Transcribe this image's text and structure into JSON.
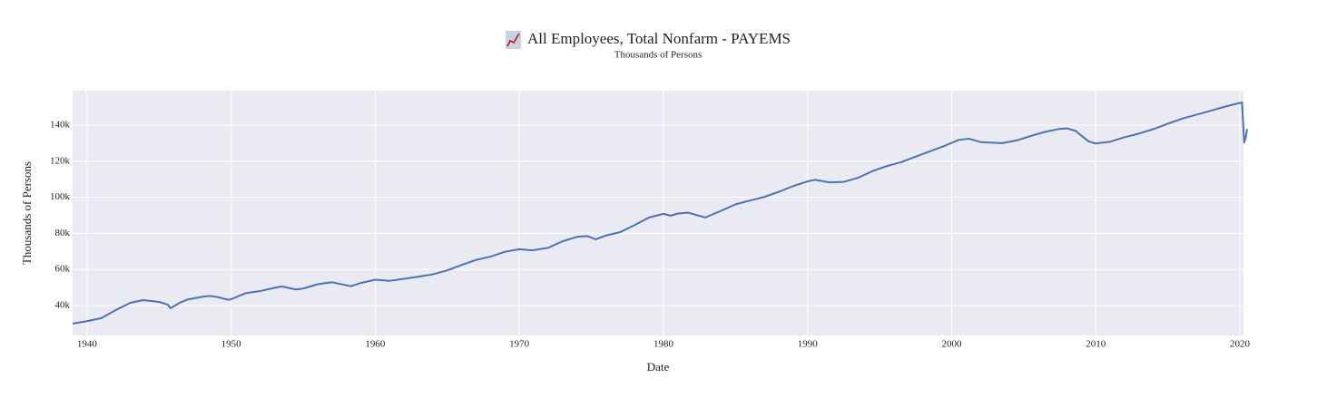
{
  "chart_data": {
    "type": "line",
    "title": "All Employees, Total Nonfarm - PAYEMS",
    "subtitle": "Thousands of Persons",
    "x_label": "Date",
    "y_label": "Thousands of Persons",
    "color": "#4c72b0",
    "grid": true,
    "xlim": [
      1939.0,
      2020.25
    ],
    "xticks": [
      1940,
      1950,
      1960,
      1970,
      1980,
      1990,
      2000,
      2010,
      2020
    ],
    "ylim": [
      23400,
      159100
    ],
    "yticks": [
      {
        "value": 40000,
        "label": "40k"
      },
      {
        "value": 60000,
        "label": "60k"
      },
      {
        "value": 80000,
        "label": "80k"
      },
      {
        "value": 100000,
        "label": "100k"
      },
      {
        "value": 120000,
        "label": "120k"
      },
      {
        "value": 140000,
        "label": "140k"
      }
    ],
    "x": [
      1939.0,
      1940.0,
      1941.0,
      1942.0,
      1943.0,
      1943.9,
      1945.0,
      1945.6,
      1945.8,
      1946.0,
      1946.5,
      1947.0,
      1948.0,
      1948.5,
      1949.0,
      1949.8,
      1950.0,
      1951.0,
      1952.0,
      1953.0,
      1953.5,
      1954.5,
      1955.0,
      1956.0,
      1957.0,
      1958.3,
      1959.0,
      1960.0,
      1961.0,
      1962.0,
      1963.0,
      1964.0,
      1965.0,
      1966.0,
      1967.0,
      1968.0,
      1969.0,
      1970.0,
      1970.9,
      1972.0,
      1973.0,
      1974.0,
      1974.7,
      1975.3,
      1976.0,
      1977.0,
      1978.0,
      1979.0,
      1980.0,
      1980.5,
      1981.0,
      1981.7,
      1982.9,
      1984.0,
      1985.0,
      1986.0,
      1987.0,
      1988.0,
      1989.0,
      1990.0,
      1990.5,
      1991.5,
      1992.5,
      1993.5,
      1994.5,
      1995.5,
      1996.5,
      1997.5,
      1998.5,
      1999.5,
      2000.5,
      2001.2,
      2002.0,
      2003.5,
      2004.5,
      2005.5,
      2006.5,
      2007.5,
      2008.0,
      2008.6,
      2009.5,
      2010.0,
      2011.0,
      2012.0,
      2013.0,
      2014.0,
      2015.0,
      2016.0,
      2017.0,
      2018.0,
      2019.0,
      2020.0,
      2020.15,
      2020.3,
      2020.4,
      2020.5
    ],
    "values": [
      30000,
      31300,
      33000,
      37500,
      41500,
      43000,
      42000,
      40500,
      38500,
      39500,
      41800,
      43400,
      44800,
      45300,
      44800,
      43200,
      43500,
      46800,
      48000,
      49800,
      50600,
      48900,
      49400,
      51800,
      52900,
      50700,
      52500,
      54300,
      53700,
      54800,
      56000,
      57300,
      59500,
      62500,
      65300,
      67100,
      69800,
      71200,
      70600,
      72000,
      75600,
      78100,
      78500,
      76700,
      78800,
      80700,
      84600,
      88800,
      90800,
      89800,
      91000,
      91500,
      88800,
      92500,
      96100,
      98200,
      100200,
      103000,
      106200,
      108800,
      109700,
      108300,
      108500,
      110800,
      114500,
      117300,
      119500,
      122500,
      125500,
      128500,
      131800,
      132500,
      130600,
      130000,
      131500,
      134000,
      136300,
      137900,
      138200,
      136800,
      131000,
      129800,
      130800,
      133300,
      135300,
      137800,
      140800,
      143600,
      145800,
      148000,
      150300,
      152300,
      152500,
      130400,
      133000,
      137800
    ]
  }
}
